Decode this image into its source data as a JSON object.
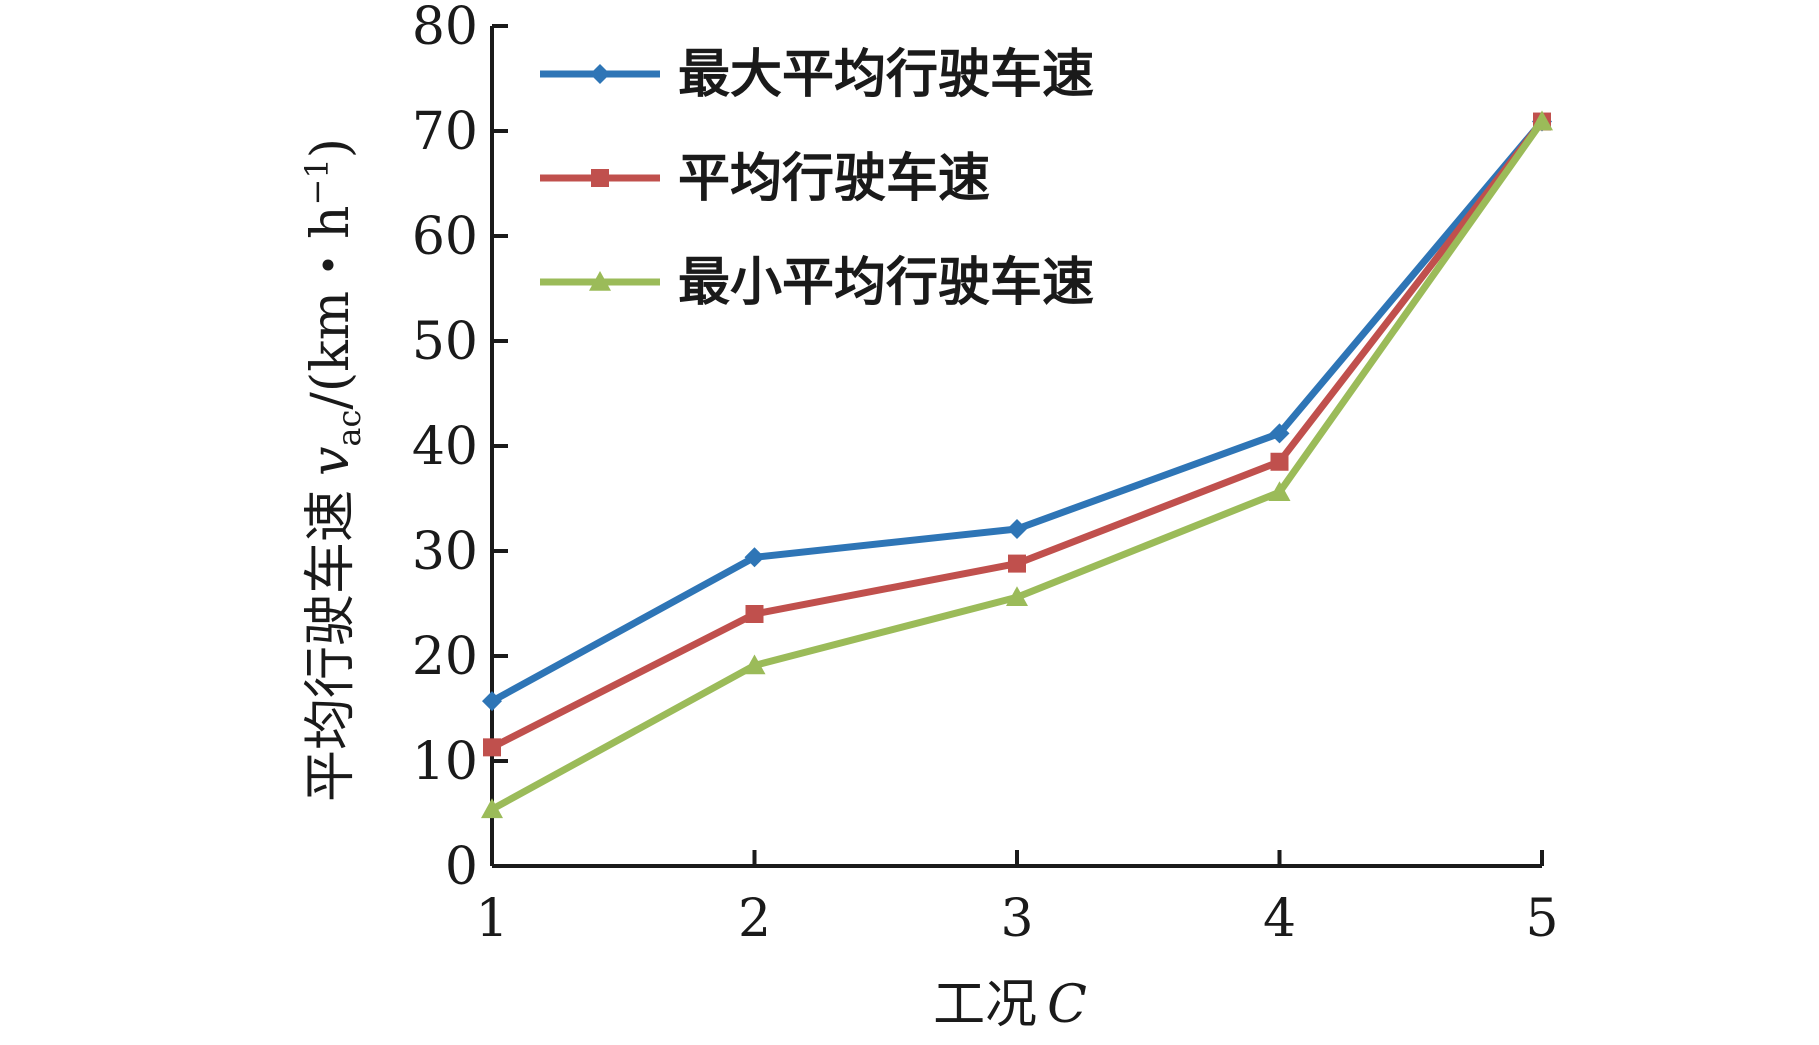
{
  "chart_data": {
    "type": "line",
    "title": "",
    "xlabel": "工况",
    "xlabel_var": "C",
    "ylabel": "平均行驶车速",
    "ylabel_var": "v",
    "ylabel_sub": "ac",
    "ylabel_unit_open": "/(km・h",
    "ylabel_unit_exp": "−1",
    "ylabel_unit_close": ")",
    "x": [
      1,
      2,
      3,
      4,
      5
    ],
    "xlim": [
      1,
      5
    ],
    "ylim": [
      0,
      80
    ],
    "yticks": [
      0,
      10,
      20,
      30,
      40,
      50,
      60,
      70,
      80
    ],
    "grid": false,
    "legend_position": "top-left",
    "series": [
      {
        "name": "最大平均行驶车速",
        "values": [
          15.7,
          29.4,
          32.1,
          41.2,
          70.9
        ],
        "color": "#2e75b6",
        "marker": "diamond"
      },
      {
        "name": "平均行驶车速",
        "values": [
          11.3,
          24.0,
          28.8,
          38.5,
          70.9
        ],
        "color": "#c0504d",
        "marker": "square"
      },
      {
        "name": "最小平均行驶车速",
        "values": [
          5.4,
          19.1,
          25.6,
          35.6,
          70.9
        ],
        "color": "#9bbb59",
        "marker": "triangle"
      }
    ]
  }
}
